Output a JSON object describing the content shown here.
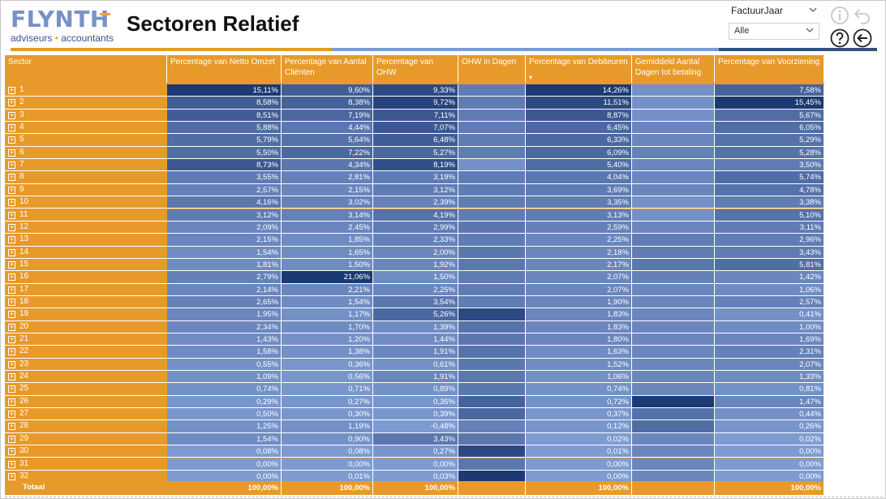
{
  "header": {
    "logo_main": "FLYNTH",
    "logo_sub_left": "adviseurs",
    "logo_sub_dot": "•",
    "logo_sub_right": "accountants",
    "title": "Sectoren Relatief"
  },
  "filter": {
    "label": "FactuurJaar",
    "value": "Alle"
  },
  "icons": {
    "info": "info-icon",
    "undo": "undo-icon",
    "help": "help-icon",
    "back": "back-arrow-icon",
    "expand": "plus-box-icon"
  },
  "colors": {
    "orange": "#e79a2a",
    "blue_light": "#7e9bd1",
    "blue_dark": "#1e3a78"
  },
  "table": {
    "columns": [
      "Sector",
      "Percentage van Netto Omzet",
      "Percentage van Aantal Cliënten",
      "Percentage van OHW",
      "OHW in Dagen",
      "Percentage van Debiteuren",
      "Gemiddeld Aantal Dagen tot betaling",
      "Percentage van Voorziening"
    ],
    "sort_indicator": "▾",
    "expand_symbol": "+",
    "rows": [
      {
        "sector": "1",
        "vals": [
          "15,11%",
          "9,60%",
          "9,33%",
          "",
          "14,26%",
          "",
          "7,58%"
        ],
        "lvl": [
          0.95,
          0.6,
          0.8,
          0.3,
          0.95,
          0.1,
          0.55
        ]
      },
      {
        "sector": "2",
        "vals": [
          "8,58%",
          "8,38%",
          "9,72%",
          "",
          "11,51%",
          "",
          "15,45%"
        ],
        "lvl": [
          0.6,
          0.55,
          0.85,
          0.3,
          0.8,
          0.1,
          0.95
        ]
      },
      {
        "sector": "3",
        "vals": [
          "8,51%",
          "7,19%",
          "7,11%",
          "",
          "8,87%",
          "",
          "5,67%"
        ],
        "lvl": [
          0.6,
          0.5,
          0.65,
          0.3,
          0.65,
          0.1,
          0.45
        ]
      },
      {
        "sector": "4",
        "vals": [
          "5,88%",
          "4,44%",
          "7,07%",
          "",
          "6,45%",
          "",
          "6,05%"
        ],
        "lvl": [
          0.45,
          0.35,
          0.65,
          0.3,
          0.5,
          0.2,
          0.45
        ]
      },
      {
        "sector": "5",
        "vals": [
          "5,79%",
          "5,64%",
          "6,48%",
          "",
          "6,33%",
          "",
          "5,29%"
        ],
        "lvl": [
          0.45,
          0.4,
          0.6,
          0.3,
          0.5,
          0.2,
          0.4
        ]
      },
      {
        "sector": "6",
        "vals": [
          "5,50%",
          "7,22%",
          "5,27%",
          "",
          "6,09%",
          "",
          "5,28%"
        ],
        "lvl": [
          0.45,
          0.5,
          0.5,
          0.3,
          0.5,
          0.25,
          0.4
        ]
      },
      {
        "sector": "7",
        "vals": [
          "8,73%",
          "4,34%",
          "8,19%",
          "",
          "5,40%",
          "",
          "3,50%"
        ],
        "lvl": [
          0.65,
          0.35,
          0.75,
          0.1,
          0.45,
          0.2,
          0.3
        ]
      },
      {
        "sector": "8",
        "vals": [
          "3,55%",
          "2,81%",
          "3,19%",
          "",
          "4,04%",
          "",
          "5,74%"
        ],
        "lvl": [
          0.3,
          0.25,
          0.3,
          0.3,
          0.35,
          0.2,
          0.45
        ]
      },
      {
        "sector": "9",
        "vals": [
          "2,57%",
          "2,15%",
          "3,12%",
          "",
          "3,69%",
          "",
          "4,78%"
        ],
        "lvl": [
          0.25,
          0.2,
          0.3,
          0.3,
          0.3,
          0.2,
          0.4
        ]
      },
      {
        "sector": "10",
        "vals": [
          "4,16%",
          "3,02%",
          "2,39%",
          "",
          "3,35%",
          "",
          "3,38%"
        ],
        "lvl": [
          0.35,
          0.25,
          0.25,
          0.3,
          0.3,
          0.1,
          0.3
        ]
      },
      {
        "sector": "11",
        "vals": [
          "3,12%",
          "3,14%",
          "4,19%",
          "",
          "3,13%",
          "",
          "5,10%"
        ],
        "lvl": [
          0.3,
          0.25,
          0.4,
          0.3,
          0.3,
          0.1,
          0.4
        ]
      },
      {
        "sector": "12",
        "vals": [
          "2,09%",
          "2,45%",
          "2,99%",
          "",
          "2,59%",
          "",
          "3,11%"
        ],
        "lvl": [
          0.2,
          0.2,
          0.3,
          0.35,
          0.25,
          0.2,
          0.3
        ]
      },
      {
        "sector": "13",
        "vals": [
          "2,15%",
          "1,85%",
          "2,33%",
          "",
          "2,25%",
          "",
          "2,96%"
        ],
        "lvl": [
          0.2,
          0.15,
          0.25,
          0.3,
          0.2,
          0.3,
          0.3
        ]
      },
      {
        "sector": "14",
        "vals": [
          "1,54%",
          "1,65%",
          "2,00%",
          "",
          "2,18%",
          "",
          "3,43%"
        ],
        "lvl": [
          0.15,
          0.15,
          0.2,
          0.35,
          0.2,
          0.3,
          0.3
        ]
      },
      {
        "sector": "15",
        "vals": [
          "1,81%",
          "1,50%",
          "1,92%",
          "",
          "2,17%",
          "",
          "5,81%"
        ],
        "lvl": [
          0.15,
          0.15,
          0.2,
          0.35,
          0.2,
          0.35,
          0.45
        ]
      },
      {
        "sector": "16",
        "vals": [
          "2,79%",
          "21,06%",
          "1,50%",
          "",
          "2,07%",
          "",
          "1,42%"
        ],
        "lvl": [
          0.25,
          0.95,
          0.15,
          0.3,
          0.2,
          0.25,
          0.2
        ]
      },
      {
        "sector": "17",
        "vals": [
          "2,14%",
          "2,21%",
          "2,25%",
          "",
          "2,07%",
          "",
          "1,06%"
        ],
        "lvl": [
          0.2,
          0.2,
          0.2,
          0.3,
          0.2,
          0.2,
          0.15
        ]
      },
      {
        "sector": "18",
        "vals": [
          "2,65%",
          "1,54%",
          "3,54%",
          "",
          "1,90%",
          "",
          "2,57%"
        ],
        "lvl": [
          0.25,
          0.15,
          0.35,
          0.3,
          0.2,
          0.2,
          0.25
        ]
      },
      {
        "sector": "19",
        "vals": [
          "1,95%",
          "1,17%",
          "5,26%",
          "",
          "1,83%",
          "",
          "0,41%"
        ],
        "lvl": [
          0.2,
          0.1,
          0.5,
          0.8,
          0.2,
          0.2,
          0.1
        ]
      },
      {
        "sector": "20",
        "vals": [
          "2,34%",
          "1,70%",
          "1,39%",
          "",
          "1,83%",
          "",
          "1,00%"
        ],
        "lvl": [
          0.2,
          0.15,
          0.15,
          0.4,
          0.2,
          0.2,
          0.15
        ]
      },
      {
        "sector": "21",
        "vals": [
          "1,43%",
          "1,20%",
          "1,44%",
          "",
          "1,80%",
          "",
          "1,69%"
        ],
        "lvl": [
          0.15,
          0.1,
          0.15,
          0.35,
          0.2,
          0.2,
          0.2
        ]
      },
      {
        "sector": "22",
        "vals": [
          "1,58%",
          "1,38%",
          "1,91%",
          "",
          "1,63%",
          "",
          "2,31%"
        ],
        "lvl": [
          0.15,
          0.1,
          0.2,
          0.4,
          0.15,
          0.2,
          0.25
        ]
      },
      {
        "sector": "23",
        "vals": [
          "0,55%",
          "0,36%",
          "0,61%",
          "",
          "1,52%",
          "",
          "2,07%"
        ],
        "lvl": [
          0.1,
          0.05,
          0.1,
          0.35,
          0.15,
          0.2,
          0.2
        ]
      },
      {
        "sector": "24",
        "vals": [
          "1,09%",
          "0,56%",
          "1,91%",
          "",
          "1,06%",
          "",
          "1,33%"
        ],
        "lvl": [
          0.1,
          0.05,
          0.2,
          0.35,
          0.1,
          0.2,
          0.15
        ]
      },
      {
        "sector": "25",
        "vals": [
          "0,74%",
          "0,71%",
          "0,89%",
          "",
          "0,74%",
          "",
          "0,81%"
        ],
        "lvl": [
          0.1,
          0.05,
          0.1,
          0.35,
          0.1,
          0.2,
          0.1
        ]
      },
      {
        "sector": "26",
        "vals": [
          "0,29%",
          "0,27%",
          "0,35%",
          "",
          "0,72%",
          "",
          "1,47%"
        ],
        "lvl": [
          0.05,
          0.05,
          0.05,
          0.55,
          0.1,
          0.95,
          0.2
        ]
      },
      {
        "sector": "27",
        "vals": [
          "0,50%",
          "0,30%",
          "0,39%",
          "",
          "0,37%",
          "",
          "0,44%"
        ],
        "lvl": [
          0.05,
          0.05,
          0.05,
          0.5,
          0.05,
          0.4,
          0.1
        ]
      },
      {
        "sector": "28",
        "vals": [
          "1,25%",
          "1,19%",
          "-0,48%",
          "",
          "0,12%",
          "",
          "0,26%"
        ],
        "lvl": [
          0.1,
          0.1,
          0.0,
          0.25,
          0.05,
          0.45,
          0.05
        ]
      },
      {
        "sector": "29",
        "vals": [
          "1,54%",
          "0,90%",
          "3,43%",
          "",
          "0,02%",
          "",
          "0,02%"
        ],
        "lvl": [
          0.15,
          0.1,
          0.35,
          0.35,
          0.0,
          0.2,
          0.0
        ]
      },
      {
        "sector": "30",
        "vals": [
          "0,08%",
          "0,08%",
          "0,27%",
          "",
          "0,01%",
          "",
          "0,00%"
        ],
        "lvl": [
          0.0,
          0.0,
          0.05,
          0.8,
          0.0,
          0.2,
          0.0
        ]
      },
      {
        "sector": "31",
        "vals": [
          "0,00%",
          "0,00%",
          "0,00%",
          "",
          "0,00%",
          "",
          "0,00%"
        ],
        "lvl": [
          0.0,
          0.0,
          0.0,
          0.35,
          0.0,
          0.2,
          0.0
        ]
      },
      {
        "sector": "32",
        "vals": [
          "0,00%",
          "0,01%",
          "0,03%",
          "",
          "0,00%",
          "",
          "0,00%"
        ],
        "lvl": [
          0.0,
          0.0,
          0.0,
          0.95,
          0.0,
          0.2,
          0.0
        ]
      }
    ],
    "total": {
      "label": "Totaal",
      "vals": [
        "100,00%",
        "100,00%",
        "100,00%",
        "",
        "100,00%",
        "",
        "100,00%"
      ]
    }
  }
}
